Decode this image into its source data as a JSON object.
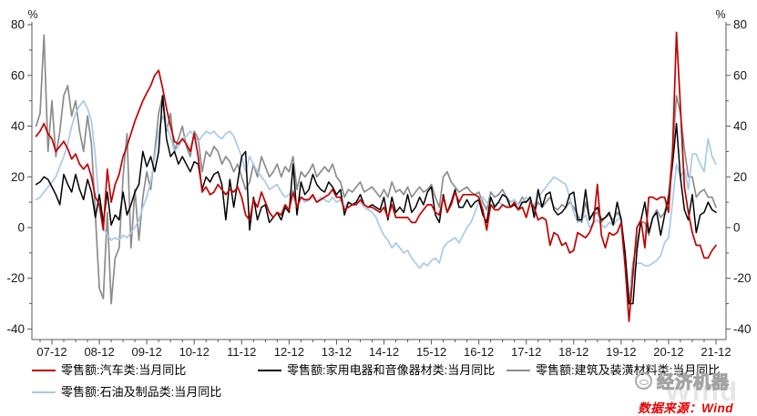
{
  "chart_data": {
    "type": "line",
    "title": "",
    "y_unit": "%",
    "ylim": [
      -40,
      80
    ],
    "y_ticks": [
      80,
      60,
      40,
      20,
      0,
      -20,
      -40
    ],
    "grid": false,
    "legend_position": "bottom",
    "x_tick_labels": [
      "07-12",
      "08-12",
      "09-12",
      "10-12",
      "11-12",
      "12-12",
      "13-12",
      "14-12",
      "15-12",
      "16-12",
      "17-12",
      "18-12",
      "19-12",
      "20-12",
      "21-12"
    ],
    "x_start": "2007-08",
    "x_end": "2021-12",
    "frequency": "monthly",
    "x": [
      "2007-08",
      "2007-09",
      "2007-10",
      "2007-11",
      "2007-12",
      "2008-01",
      "2008-02",
      "2008-03",
      "2008-04",
      "2008-05",
      "2008-06",
      "2008-07",
      "2008-08",
      "2008-09",
      "2008-10",
      "2008-11",
      "2008-12",
      "2009-01",
      "2009-02",
      "2009-03",
      "2009-04",
      "2009-05",
      "2009-06",
      "2009-07",
      "2009-08",
      "2009-09",
      "2009-10",
      "2009-11",
      "2009-12",
      "2010-01",
      "2010-02",
      "2010-03",
      "2010-04",
      "2010-05",
      "2010-06",
      "2010-07",
      "2010-08",
      "2010-09",
      "2010-10",
      "2010-11",
      "2010-12",
      "2011-01",
      "2011-02",
      "2011-03",
      "2011-04",
      "2011-05",
      "2011-06",
      "2011-07",
      "2011-08",
      "2011-09",
      "2011-10",
      "2011-11",
      "2011-12",
      "2012-01",
      "2012-02",
      "2012-03",
      "2012-04",
      "2012-05",
      "2012-06",
      "2012-07",
      "2012-08",
      "2012-09",
      "2012-10",
      "2012-11",
      "2012-12",
      "2013-01",
      "2013-02",
      "2013-03",
      "2013-04",
      "2013-05",
      "2013-06",
      "2013-07",
      "2013-08",
      "2013-09",
      "2013-10",
      "2013-11",
      "2013-12",
      "2014-01",
      "2014-02",
      "2014-03",
      "2014-04",
      "2014-05",
      "2014-06",
      "2014-07",
      "2014-08",
      "2014-09",
      "2014-10",
      "2014-11",
      "2014-12",
      "2015-01",
      "2015-02",
      "2015-03",
      "2015-04",
      "2015-05",
      "2015-06",
      "2015-07",
      "2015-08",
      "2015-09",
      "2015-10",
      "2015-11",
      "2015-12",
      "2016-01",
      "2016-02",
      "2016-03",
      "2016-04",
      "2016-05",
      "2016-06",
      "2016-07",
      "2016-08",
      "2016-09",
      "2016-10",
      "2016-11",
      "2016-12",
      "2017-01",
      "2017-02",
      "2017-03",
      "2017-04",
      "2017-05",
      "2017-06",
      "2017-07",
      "2017-08",
      "2017-09",
      "2017-10",
      "2017-11",
      "2017-12",
      "2018-01",
      "2018-02",
      "2018-03",
      "2018-04",
      "2018-05",
      "2018-06",
      "2018-07",
      "2018-08",
      "2018-09",
      "2018-10",
      "2018-11",
      "2018-12",
      "2019-01",
      "2019-02",
      "2019-03",
      "2019-04",
      "2019-05",
      "2019-06",
      "2019-07",
      "2019-08",
      "2019-09",
      "2019-10",
      "2019-11",
      "2019-12",
      "2020-01",
      "2020-02",
      "2020-03",
      "2020-04",
      "2020-05",
      "2020-06",
      "2020-07",
      "2020-08",
      "2020-09",
      "2020-10",
      "2020-11",
      "2020-12",
      "2021-01",
      "2021-02",
      "2021-03",
      "2021-04",
      "2021-05",
      "2021-06",
      "2021-07",
      "2021-08",
      "2021-09",
      "2021-10",
      "2021-11",
      "2021-12"
    ],
    "series": [
      {
        "name": "零售额:汽车类:当月同比",
        "color": "#c00000",
        "values": [
          36,
          38,
          41,
          37,
          35,
          30,
          32,
          34,
          31,
          27,
          29,
          25,
          23,
          25,
          20,
          12,
          9,
          -1,
          23,
          10,
          17,
          21,
          28,
          32,
          37,
          42,
          46,
          50,
          53,
          56,
          60,
          62,
          55,
          47,
          40,
          34,
          33,
          35,
          33,
          30,
          37,
          28,
          14,
          16,
          13,
          14,
          17,
          15,
          13,
          15,
          14,
          16,
          12,
          5,
          3,
          11,
          8,
          14,
          10,
          6,
          4,
          6,
          5,
          9,
          7,
          14,
          8,
          12,
          11,
          11,
          13,
          10,
          11,
          12,
          13,
          15,
          12,
          12,
          7,
          8,
          9,
          9,
          11,
          9,
          8,
          8,
          7,
          6,
          8,
          4,
          9,
          4,
          4,
          4,
          4,
          2,
          2,
          5,
          7,
          9,
          9,
          6,
          5,
          12,
          6,
          9,
          14,
          10,
          13,
          13,
          13,
          13,
          12,
          7,
          -1,
          9,
          7,
          7,
          9,
          8,
          8,
          10,
          7,
          8,
          4,
          10,
          8,
          3,
          4,
          3,
          -7,
          -2,
          -3,
          -7,
          -6,
          -10,
          -9,
          -2,
          -3,
          -4,
          -2,
          2,
          17,
          -3,
          -8,
          -2,
          -3,
          -2,
          2,
          -15,
          -37,
          -18,
          0,
          3,
          -8,
          12,
          12,
          11,
          12,
          12,
          6,
          30,
          77,
          48,
          16,
          6,
          -2,
          -7,
          -7,
          -12,
          -12,
          -9,
          -7
        ]
      },
      {
        "name": "零售额:家用电器和音像器材类:当月同比",
        "color": "#000000",
        "values": [
          17,
          18,
          20,
          19,
          16,
          13,
          9,
          21,
          17,
          14,
          21,
          15,
          11,
          19,
          14,
          4,
          13,
          2,
          14,
          1,
          5,
          3,
          14,
          5,
          9,
          14,
          17,
          30,
          24,
          28,
          22,
          30,
          52,
          35,
          28,
          30,
          25,
          28,
          25,
          22,
          26,
          25,
          15,
          20,
          18,
          21,
          22,
          17,
          3,
          19,
          8,
          18,
          28,
          30,
          -1,
          12,
          3,
          8,
          9,
          2,
          4,
          6,
          3,
          8,
          6,
          25,
          5,
          18,
          13,
          15,
          21,
          17,
          15,
          14,
          18,
          16,
          13,
          15,
          5,
          10,
          9,
          10,
          13,
          9,
          8,
          9,
          8,
          7,
          12,
          3,
          12,
          6,
          8,
          6,
          13,
          6,
          8,
          12,
          9,
          14,
          16,
          5,
          2,
          13,
          6,
          10,
          15,
          8,
          8,
          11,
          8,
          10,
          11,
          5,
          2,
          12,
          8,
          10,
          13,
          12,
          8,
          9,
          7,
          10,
          10,
          12,
          4,
          15,
          8,
          13,
          14,
          7,
          5,
          6,
          8,
          13,
          14,
          3,
          3,
          15,
          3,
          6,
          8,
          3,
          4,
          6,
          1,
          10,
          3,
          -10,
          -30,
          -30,
          -9,
          3,
          10,
          -2,
          4,
          6,
          -3,
          5,
          11,
          25,
          41,
          20,
          7,
          3,
          13,
          -2,
          5,
          6,
          10,
          7,
          6
        ]
      },
      {
        "name": "零售额:建筑及装潢材料类:当月同比",
        "color": "#8c8c8c",
        "values": [
          40,
          45,
          76,
          30,
          50,
          28,
          38,
          52,
          56,
          44,
          50,
          38,
          30,
          44,
          33,
          5,
          -24,
          -28,
          6,
          -30,
          -12,
          -8,
          20,
          37,
          -8,
          15,
          -5,
          12,
          22,
          15,
          30,
          45,
          52,
          38,
          45,
          30,
          35,
          40,
          32,
          28,
          38,
          35,
          22,
          30,
          28,
          32,
          30,
          25,
          28,
          26,
          22,
          25,
          20,
          15,
          18,
          25,
          20,
          28,
          24,
          20,
          22,
          25,
          20,
          24,
          22,
          28,
          15,
          22,
          20,
          22,
          25,
          20,
          22,
          24,
          22,
          25,
          20,
          18,
          12,
          15,
          14,
          16,
          18,
          14,
          15,
          16,
          14,
          12,
          15,
          12,
          18,
          14,
          15,
          13,
          16,
          12,
          14,
          16,
          14,
          15,
          17,
          12,
          8,
          20,
          22,
          18,
          16,
          14,
          15,
          16,
          14,
          13,
          14,
          10,
          7,
          14,
          12,
          13,
          15,
          12,
          10,
          11,
          9,
          12,
          10,
          12,
          6,
          10,
          8,
          10,
          12,
          8,
          7,
          9,
          8,
          10,
          8,
          5,
          2,
          10,
          4,
          5,
          6,
          2,
          4,
          5,
          3,
          6,
          4,
          -15,
          -30,
          -14,
          -6,
          2,
          2,
          -3,
          4,
          7,
          4,
          6,
          13,
          30,
          52,
          45,
          31,
          20,
          20,
          12,
          14,
          15,
          12,
          12,
          8
        ]
      },
      {
        "name": "零售额:石油及制品类:当月同比",
        "color": "#a9c9ea",
        "values": [
          11,
          12,
          14,
          16,
          18,
          20,
          24,
          28,
          33,
          40,
          45,
          48,
          50,
          47,
          42,
          28,
          8,
          0,
          -3,
          -5,
          -4,
          -5,
          -3,
          -4,
          -2,
          0,
          3,
          8,
          12,
          18,
          28,
          38,
          44,
          40,
          36,
          30,
          32,
          35,
          36,
          38,
          36,
          34,
          36,
          38,
          37,
          38,
          36,
          35,
          37,
          38,
          36,
          32,
          28,
          22,
          28,
          25,
          22,
          20,
          18,
          15,
          16,
          17,
          14,
          12,
          13,
          15,
          8,
          12,
          10,
          11,
          12,
          10,
          12,
          11,
          10,
          12,
          10,
          11,
          8,
          10,
          9,
          10,
          10,
          8,
          7,
          6,
          4,
          0,
          -3,
          -5,
          -8,
          -6,
          -8,
          -10,
          -9,
          -12,
          -14,
          -16,
          -14,
          -15,
          -13,
          -12,
          -14,
          -8,
          -6,
          -5,
          -4,
          -6,
          -3,
          0,
          2,
          6,
          10,
          12,
          10,
          8,
          9,
          10,
          9,
          8,
          10,
          11,
          9,
          10,
          12,
          10,
          9,
          12,
          14,
          16,
          18,
          20,
          19,
          18,
          17,
          12,
          6,
          2,
          3,
          5,
          0,
          2,
          3,
          1,
          0,
          2,
          1,
          3,
          4,
          -10,
          -26,
          -19,
          -14,
          -14,
          -15,
          -15,
          -14,
          -13,
          -11,
          -6,
          -4,
          10,
          25,
          20,
          23,
          15,
          29,
          29,
          25,
          22,
          35,
          28,
          25
        ]
      }
    ]
  },
  "footer": {
    "source_label": "数据来源：Wind"
  },
  "watermark": {
    "brand": "经济机器",
    "faint_text": "Wind"
  }
}
